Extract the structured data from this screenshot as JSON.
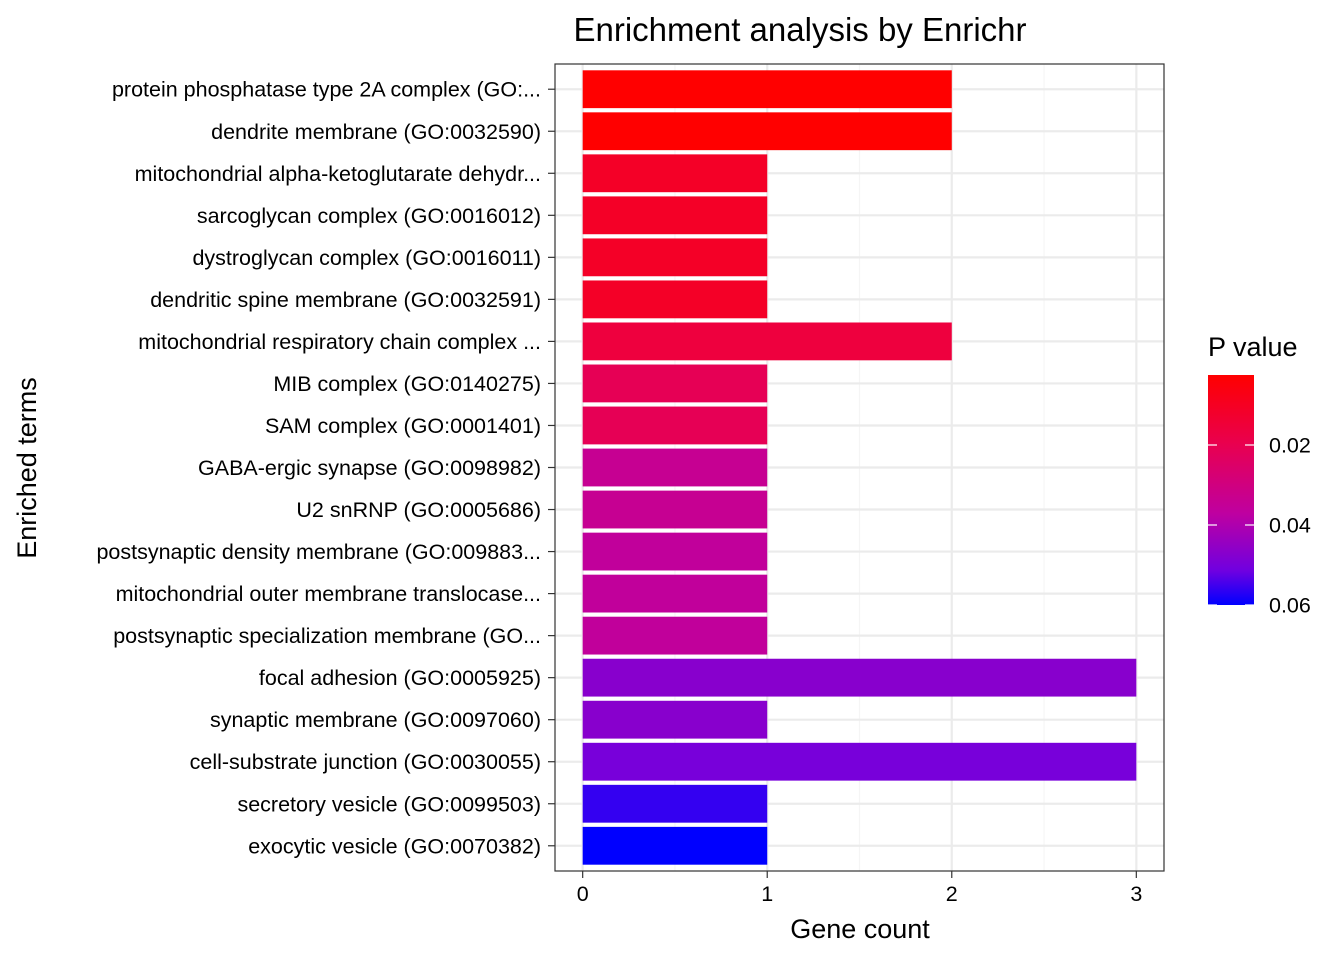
{
  "chart_data": {
    "type": "bar",
    "orientation": "horizontal",
    "title": "Enrichment analysis by Enrichr",
    "xlabel": "Gene count",
    "ylabel": "Enriched terms",
    "xlim": [
      -0.15,
      3.15
    ],
    "x_ticks": [
      0,
      1,
      2,
      3
    ],
    "grid": true,
    "categories": [
      "protein phosphatase type 2A complex (GO:...",
      "dendrite membrane (GO:0032590)",
      "mitochondrial alpha-ketoglutarate dehydr...",
      "sarcoglycan complex (GO:0016012)",
      "dystroglycan complex (GO:0016011)",
      "dendritic spine membrane (GO:0032591)",
      "mitochondrial respiratory chain complex ...",
      "MIB complex (GO:0140275)",
      "SAM complex (GO:0001401)",
      "GABA-ergic synapse (GO:0098982)",
      "U2 snRNP (GO:0005686)",
      "postsynaptic density membrane (GO:009883...",
      "mitochondrial outer membrane translocase...",
      "postsynaptic specialization membrane (GO...",
      "focal adhesion (GO:0005925)",
      "synaptic membrane (GO:0097060)",
      "cell-substrate junction (GO:0030055)",
      "secretory vesicle (GO:0099503)",
      "exocytic vesicle (GO:0070382)"
    ],
    "values": [
      2,
      2,
      1,
      1,
      1,
      1,
      2,
      1,
      1,
      1,
      1,
      1,
      1,
      1,
      3,
      1,
      3,
      1,
      1
    ],
    "p_values": [
      0.0025,
      0.0025,
      0.011,
      0.011,
      0.011,
      0.011,
      0.016,
      0.021,
      0.021,
      0.034,
      0.034,
      0.036,
      0.036,
      0.036,
      0.047,
      0.047,
      0.05,
      0.056,
      0.06
    ],
    "legend": {
      "title": "P value",
      "position": "right",
      "ticks": [
        "0.02",
        "0.04",
        "0.06"
      ],
      "tick_values": [
        0.02,
        0.04,
        0.06
      ],
      "range": [
        0.0025,
        0.06
      ],
      "low_color": "#FF0000",
      "high_color": "#0000FF"
    },
    "colors": {
      "panel_border": "#333333",
      "grid_major": "#EBEBEB",
      "grid_minor": "#F5F5F5",
      "axis_text": "#000000"
    }
  }
}
